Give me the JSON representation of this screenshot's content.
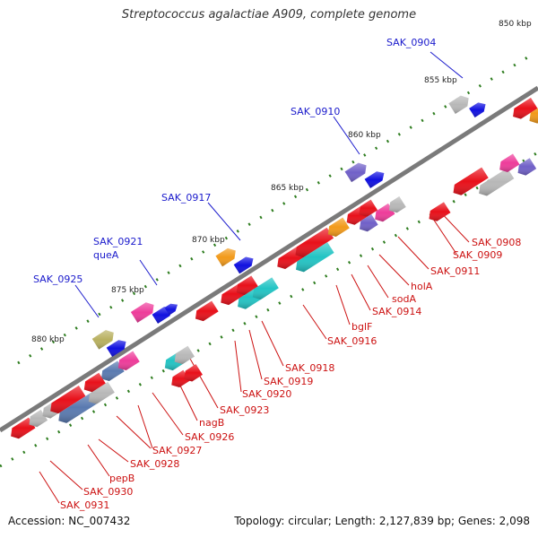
{
  "title": "Streptococcus agalactiae A909, complete genome",
  "footer": {
    "accession_label": "Accession:",
    "accession": "NC_007432",
    "topology_label": "Topology:",
    "topology": "circular",
    "length_label": "Length:",
    "length": "2,127,839 bp",
    "genes_label": "Genes:",
    "genes": "2,098"
  },
  "colors": {
    "backbone": "#7a7a7a",
    "tick": "#2e7d1f",
    "upper_label": "#1a1acc",
    "lower_label": "#cc1111",
    "red": "#e8101a",
    "blue": "#1010e0",
    "cyan": "#22c4c4",
    "grey": "#b8b8b8",
    "orange": "#f29a1a",
    "violet": "#7060c8",
    "pink": "#ee3c9a",
    "olive": "#b8b060",
    "steel": "#5a7ab0"
  },
  "kbp_marks": [
    "850 kbp",
    "855 kbp",
    "860 kbp",
    "865 kbp",
    "870 kbp",
    "875 kbp",
    "880 kbp"
  ],
  "upper_labels": [
    "SAK_0904",
    "SAK_0910",
    "SAK_0917",
    "SAK_0921",
    "queA",
    "SAK_0925"
  ],
  "lower_labels": [
    "SAK_0908",
    "SAK_0909",
    "SAK_0911",
    "holA",
    "SAK_0914",
    "sodA",
    "bglF",
    "SAK_0916",
    "SAK_0918",
    "SAK_0919",
    "SAK_0920",
    "SAK_0923",
    "nagB",
    "SAK_0926",
    "SAK_0927",
    "SAK_0928",
    "pepB",
    "SAK_0930",
    "SAK_0931"
  ]
}
